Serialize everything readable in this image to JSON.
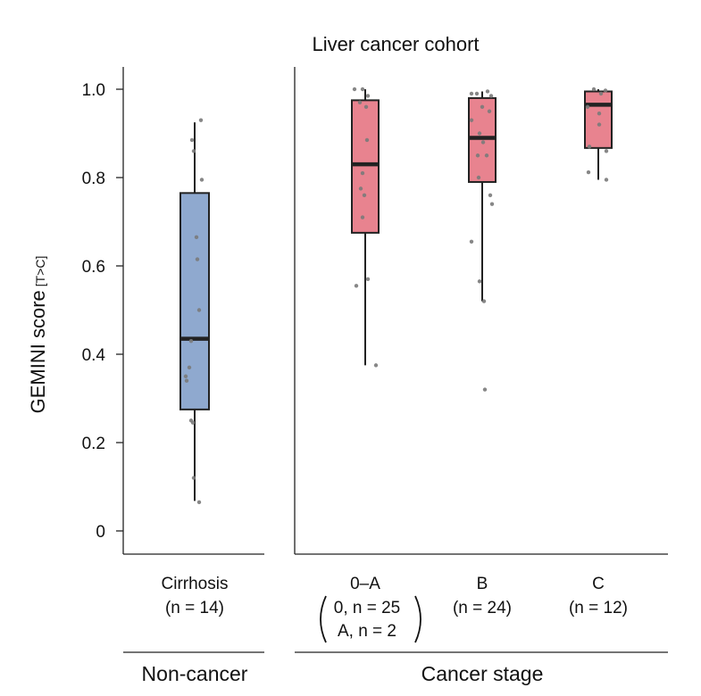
{
  "chart_data": {
    "type": "box",
    "title": "Liver cancer cohort",
    "ylabel": "GEMINI score",
    "ylabel_subscript": "[T>C]",
    "ylim": [
      0,
      1.0
    ],
    "yticks": [
      "0",
      "0.2",
      "0.4",
      "0.6",
      "0.8",
      "1.0"
    ],
    "ytick_values": [
      0,
      0.2,
      0.4,
      0.6,
      0.8,
      1.0
    ],
    "panels": [
      {
        "id": "noncancer",
        "group_label": "Non-cancer",
        "categories": [
          {
            "name": "Cirrhosis",
            "n_line": "(n = 14)",
            "n_prefix": "(",
            "n_suffix": " = 14)",
            "color": "#8fa9cf",
            "q1": 0.275,
            "median": 0.435,
            "q3": 0.765,
            "whisker_low": 0.068,
            "whisker_high": 0.925,
            "points": [
              0.93,
              0.885,
              0.86,
              0.795,
              0.665,
              0.615,
              0.5,
              0.43,
              0.37,
              0.35,
              0.34,
              0.25,
              0.245,
              0.12,
              0.065
            ],
            "jitter": [
              7,
              -3,
              -1,
              8,
              2,
              3,
              5,
              -4,
              -6,
              -10,
              -9,
              -4,
              -2,
              -1,
              5
            ]
          }
        ]
      },
      {
        "id": "cancer",
        "group_label": "Cancer stage",
        "categories": [
          {
            "name": "0–A",
            "n_line1": "0, n = 25",
            "n_line2": "A, n = 2",
            "color": "#e8838f",
            "q1": 0.675,
            "median": 0.83,
            "q3": 0.975,
            "whisker_low": 0.375,
            "whisker_high": 1.0,
            "points": [
              1.0,
              1.0,
              0.985,
              0.97,
              0.96,
              0.885,
              0.81,
              0.775,
              0.76,
              0.71,
              0.57,
              0.555,
              0.375
            ],
            "jitter": [
              -12,
              -3,
              3,
              -6,
              1,
              2,
              -3,
              -5,
              -1,
              -3,
              3,
              -10,
              12
            ]
          },
          {
            "name": "B",
            "n_line": "(n = 24)",
            "color": "#e8838f",
            "q1": 0.79,
            "median": 0.89,
            "q3": 0.98,
            "whisker_low": 0.52,
            "whisker_high": 0.995,
            "points": [
              0.99,
              0.99,
              0.995,
              0.985,
              0.96,
              0.95,
              0.93,
              0.9,
              0.88,
              0.85,
              0.85,
              0.8,
              0.76,
              0.74,
              0.655,
              0.565,
              0.52,
              0.32
            ],
            "jitter": [
              -12,
              -6,
              6,
              10,
              0,
              8,
              -12,
              -3,
              1,
              -5,
              5,
              -4,
              9,
              11,
              -12,
              -3,
              2,
              3
            ]
          },
          {
            "name": "C",
            "n_line": "(n = 12)",
            "color": "#e8838f",
            "q1": 0.867,
            "median": 0.965,
            "q3": 0.995,
            "whisker_low": 0.795,
            "whisker_high": 1.0,
            "points": [
              1.0,
              0.997,
              0.99,
              0.96,
              0.945,
              0.92,
              0.87,
              0.86,
              0.812,
              0.795
            ],
            "jitter": [
              -5,
              8,
              3,
              -12,
              1,
              1,
              -10,
              9,
              -11,
              9
            ]
          }
        ]
      }
    ]
  }
}
